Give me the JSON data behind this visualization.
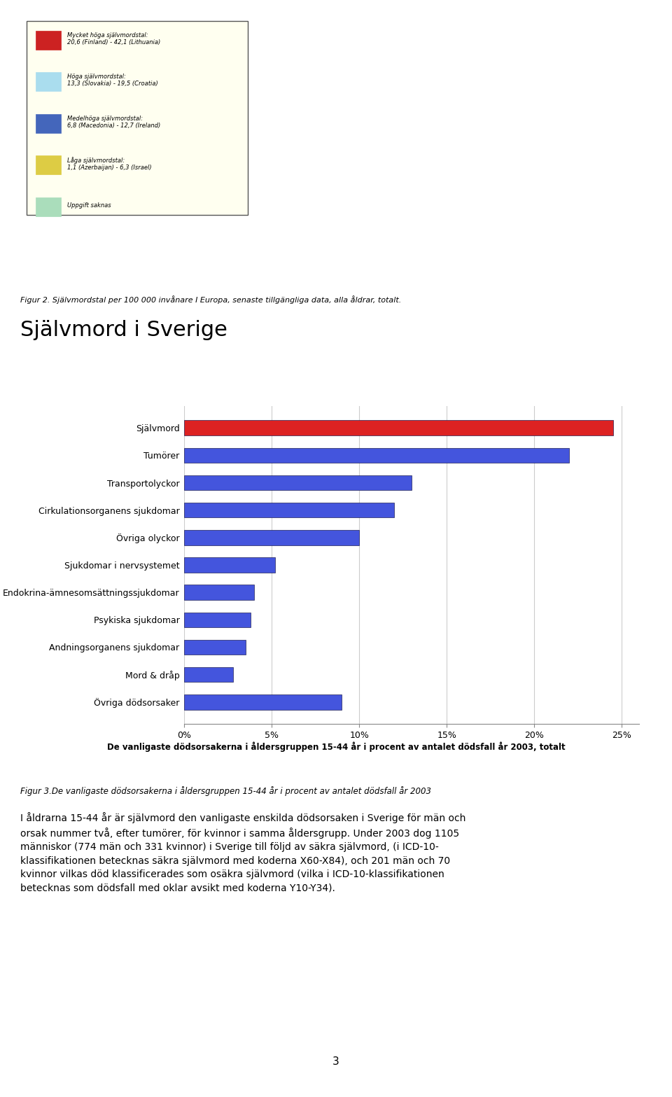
{
  "title": "Självmord i Sverige",
  "categories": [
    "Övriga dödsorsaker",
    "Mord & dråp",
    "Andningsorganens sjukdomar",
    "Psykiska sjukdomar",
    "Endokrina-ämnesomsättningssjukdomar",
    "Sjukdomar i nervsystemet",
    "Övriga olyckor",
    "Cirkulationsorganens sjukdomar",
    "Transportolyckor",
    "Tumörer",
    "Självmord"
  ],
  "values": [
    9.0,
    2.8,
    3.5,
    3.8,
    4.0,
    5.2,
    10.0,
    12.0,
    13.0,
    22.0,
    24.5
  ],
  "bar_colors": [
    "#4455dd",
    "#4455dd",
    "#4455dd",
    "#4455dd",
    "#4455dd",
    "#4455dd",
    "#4455dd",
    "#4455dd",
    "#4455dd",
    "#4455dd",
    "#dd2222"
  ],
  "xlabel_ticks": [
    0,
    5,
    10,
    15,
    20,
    25
  ],
  "xlabel_labels": [
    "0%",
    "5%",
    "10%",
    "15%",
    "20%",
    "25%"
  ],
  "xlim": [
    0,
    26
  ],
  "chart_caption": "De vanligaste dödsorsakerna i åldersgruppen 15-44 år i procent av antalet dödsfall år 2003, totalt",
  "fig2_caption": "Figur 2. Självmordstal per 100 000 invånare I Europa, senaste tillgängliga data, alla åldrar, totalt.",
  "fig3_caption": "Figur 3.De vanligaste dödsorsakerna i åldersgruppen 15-44 år i procent av antalet dödsfall år 2003",
  "body_text": [
    "I åldrarna 15-44 år är självmord den vanligaste enskilda dödsorsaken i Sverige för män och",
    "orsak nummer två, efter tumörer, för kvinnor i samma åldersgrupp. Under 2003 dog 1105",
    "människor (774 män och 331 kvinnor) i Sverige till följd av säkra självmord, (i ICD-10-",
    "klassifikationen betecknas säkra självmord med koderna X60-X84), och 201 män och 70",
    "kvinnor vilkas död klassificerades som osäkra självmord (vilka i ICD-10-klassifikationen",
    "betecknas som dödsfall med oklar avsikt med koderna Y10-Y34)."
  ],
  "map_bg": "#f5f5cc",
  "background_color": "#ffffff",
  "chart_bg_color": "#ffffff",
  "grid_color": "#cccccc",
  "title_fontsize": 22,
  "tick_fontsize": 9,
  "body_fontsize": 10
}
